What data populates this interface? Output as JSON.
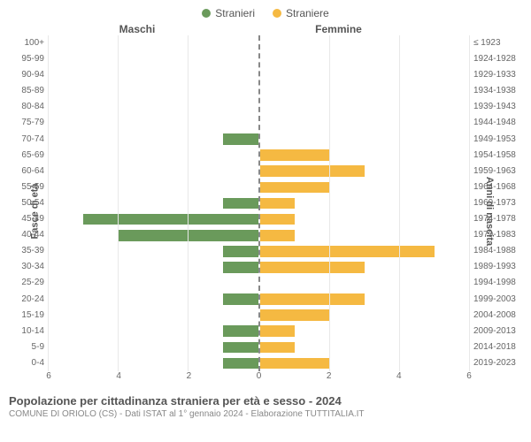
{
  "legend": {
    "male": {
      "label": "Stranieri",
      "color": "#6a9a5b"
    },
    "female": {
      "label": "Straniere",
      "color": "#f5b942"
    }
  },
  "headers": {
    "left": "Maschi",
    "right": "Femmine"
  },
  "axis_labels": {
    "left": "Fasce di età",
    "right": "Anni di nascita"
  },
  "age_groups": [
    "100+",
    "95-99",
    "90-94",
    "85-89",
    "80-84",
    "75-79",
    "70-74",
    "65-69",
    "60-64",
    "55-59",
    "50-54",
    "45-49",
    "40-44",
    "35-39",
    "30-34",
    "25-29",
    "20-24",
    "15-19",
    "10-14",
    "5-9",
    "0-4"
  ],
  "birth_years": [
    "≤ 1923",
    "1924-1928",
    "1929-1933",
    "1934-1938",
    "1939-1943",
    "1944-1948",
    "1949-1953",
    "1954-1958",
    "1959-1963",
    "1964-1968",
    "1969-1973",
    "1974-1978",
    "1979-1983",
    "1984-1988",
    "1989-1993",
    "1994-1998",
    "1999-2003",
    "2004-2008",
    "2009-2013",
    "2014-2018",
    "2019-2023"
  ],
  "male_values": [
    0,
    0,
    0,
    0,
    0,
    0,
    1,
    0,
    0,
    0,
    1,
    5,
    4,
    1,
    1,
    0,
    1,
    0,
    1,
    1,
    1
  ],
  "female_values": [
    0,
    0,
    0,
    0,
    0,
    0,
    0,
    2,
    3,
    2,
    1,
    1,
    1,
    5,
    3,
    0,
    3,
    2,
    1,
    1,
    2
  ],
  "x_max": 6,
  "x_ticks": [
    0,
    2,
    4,
    6
  ],
  "colors": {
    "male_bar": "#6a9a5b",
    "female_bar": "#f5b942",
    "grid": "#e8e8e8",
    "center_dash": "#888888",
    "text": "#666666",
    "background": "#ffffff"
  },
  "title": "Popolazione per cittadinanza straniera per età e sesso - 2024",
  "source": "COMUNE DI ORIOLO (CS) - Dati ISTAT al 1° gennaio 2024 - Elaborazione TUTTITALIA.IT"
}
